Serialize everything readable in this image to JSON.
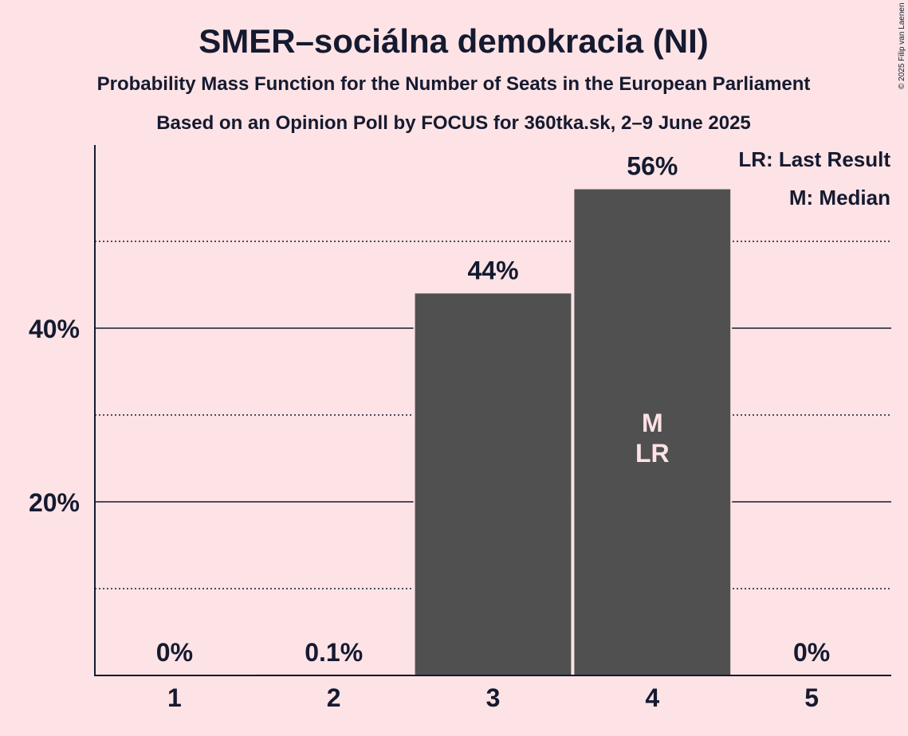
{
  "chart_data": {
    "type": "bar",
    "title": "SMER–sociálna demokracia (NI)",
    "subtitles": [
      "Probability Mass Function for the Number of Seats in the European Parliament",
      "Based on an Opinion Poll by FOCUS for 360tka.sk, 2–9 June 2025"
    ],
    "categories": [
      "1",
      "2",
      "3",
      "4",
      "5"
    ],
    "values": [
      0,
      0.1,
      44,
      56,
      0
    ],
    "value_labels": [
      "0%",
      "0.1%",
      "44%",
      "56%",
      "0%"
    ],
    "bar_markers": [
      "",
      "",
      "",
      "M\nLR",
      ""
    ],
    "y_ticks": [
      {
        "value": 20,
        "label": "20%"
      },
      {
        "value": 40,
        "label": "40%"
      }
    ],
    "y_minor_gridlines": [
      10,
      30,
      50
    ],
    "ylim": [
      0,
      61
    ],
    "legend": [
      "LR: Last Result",
      "M: Median"
    ],
    "legend_position": "top-right",
    "copyright": "© 2025 Filip van Laenen",
    "colors": {
      "background": "#fde3e5",
      "bar": "#505050",
      "text": "#151a30",
      "marker_text": "#fde3e5"
    }
  }
}
